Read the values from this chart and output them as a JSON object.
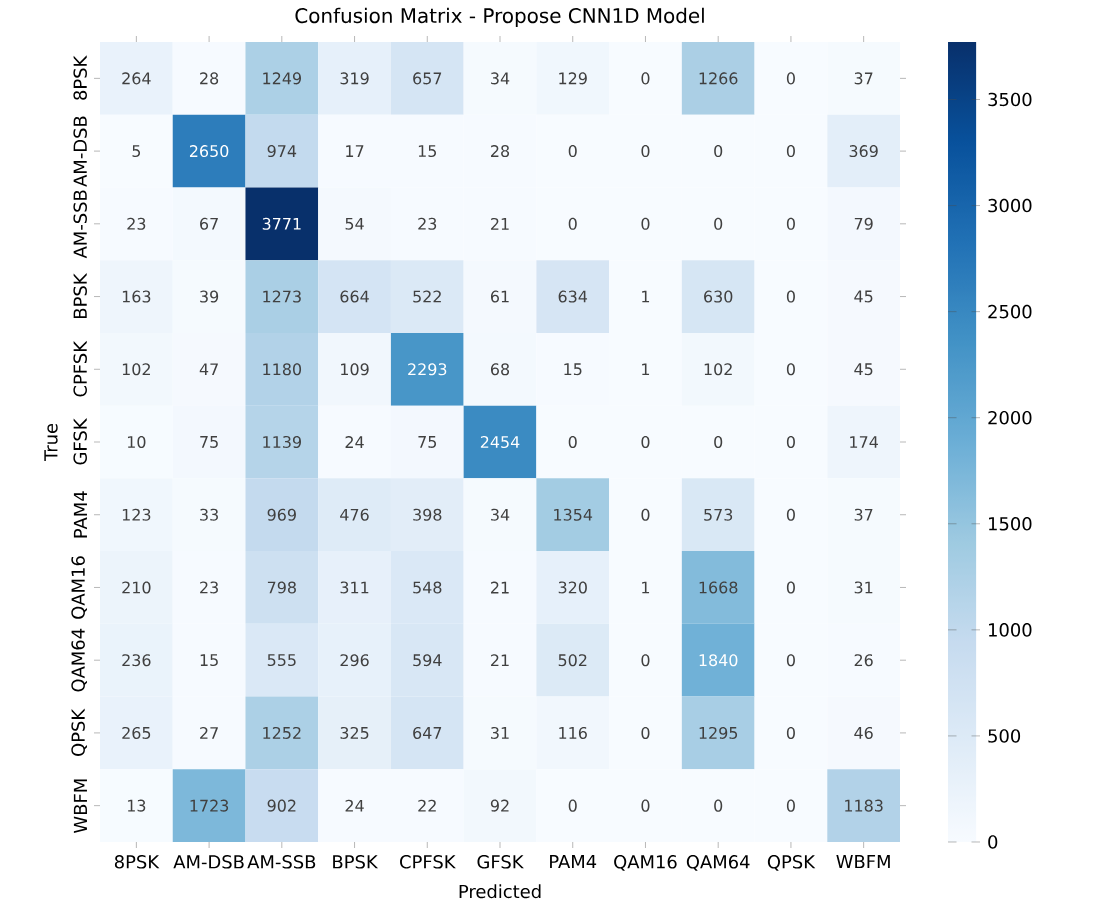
{
  "chart_data": {
    "type": "heatmap",
    "title": "Confusion Matrix - Propose CNN1D Model",
    "xlabel": "Predicted",
    "ylabel": "True",
    "categories": [
      "8PSK",
      "AM-DSB",
      "AM-SSB",
      "BPSK",
      "CPFSK",
      "GFSK",
      "PAM4",
      "QAM16",
      "QAM64",
      "QPSK",
      "WBFM"
    ],
    "y_categories": [
      "8PSK",
      "AM-DSB",
      "AM-SSB",
      "BPSK",
      "CPFSK",
      "GFSK",
      "PAM4",
      "QAM16",
      "QAM64",
      "QPSK",
      "WBFM"
    ],
    "cells": [
      [
        264,
        28,
        1249,
        319,
        657,
        34,
        129,
        0,
        1266,
        0,
        37
      ],
      [
        5,
        2650,
        974,
        17,
        15,
        28,
        0,
        0,
        0,
        0,
        369
      ],
      [
        23,
        67,
        3771,
        54,
        23,
        21,
        0,
        0,
        0,
        0,
        79
      ],
      [
        163,
        39,
        1273,
        664,
        522,
        61,
        634,
        1,
        630,
        0,
        45
      ],
      [
        102,
        47,
        1180,
        109,
        2293,
        68,
        15,
        1,
        102,
        0,
        45
      ],
      [
        10,
        75,
        1139,
        24,
        75,
        2454,
        0,
        0,
        0,
        0,
        174
      ],
      [
        123,
        33,
        969,
        476,
        398,
        34,
        1354,
        0,
        573,
        0,
        37
      ],
      [
        210,
        23,
        798,
        311,
        548,
        21,
        320,
        1,
        1668,
        0,
        31
      ],
      [
        236,
        15,
        555,
        296,
        594,
        21,
        502,
        0,
        1840,
        0,
        26
      ],
      [
        265,
        27,
        1252,
        325,
        647,
        31,
        116,
        0,
        1295,
        0,
        46
      ],
      [
        13,
        1723,
        902,
        24,
        22,
        92,
        0,
        0,
        0,
        0,
        1183
      ]
    ],
    "clim": [
      0,
      3771
    ],
    "cticks": [
      0,
      500,
      1000,
      1500,
      2000,
      2500,
      3000,
      3500
    ],
    "data_labels": true
  }
}
